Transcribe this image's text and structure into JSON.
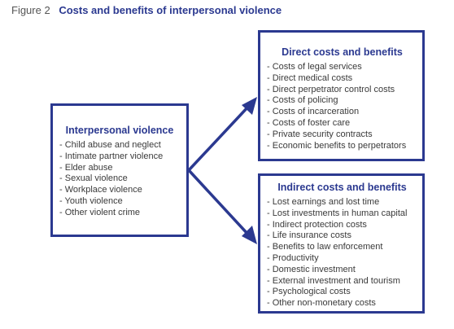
{
  "figure": {
    "number": "Figure 2",
    "title": "Costs and benefits of interpersonal violence"
  },
  "boxes": {
    "interpersonal": {
      "title": "Interpersonal violence",
      "items": [
        "Child abuse and neglect",
        "Intimate partner violence",
        "Elder abuse",
        "Sexual violence",
        "Workplace violence",
        "Youth violence",
        "Other violent crime"
      ]
    },
    "direct": {
      "title": "Direct costs and benefits",
      "items": [
        "Costs of legal services",
        "Direct medical costs",
        "Direct perpetrator control costs",
        "Costs of policing",
        "Costs of incarceration",
        "Costs of foster care",
        "Private security contracts",
        "Economic benefits to perpetrators"
      ]
    },
    "indirect": {
      "title": "Indirect costs and benefits",
      "items": [
        "Lost earnings and lost time",
        "Lost investments in human capital",
        "Indirect protection costs",
        "Life insurance costs",
        "Benefits to law enforcement",
        "Productivity",
        "Domestic investment",
        "External investment and tourism",
        "Psychological costs",
        "Other non-monetary costs"
      ]
    }
  },
  "colors": {
    "accent": "#2b3990",
    "text": "#3a3a3a"
  }
}
